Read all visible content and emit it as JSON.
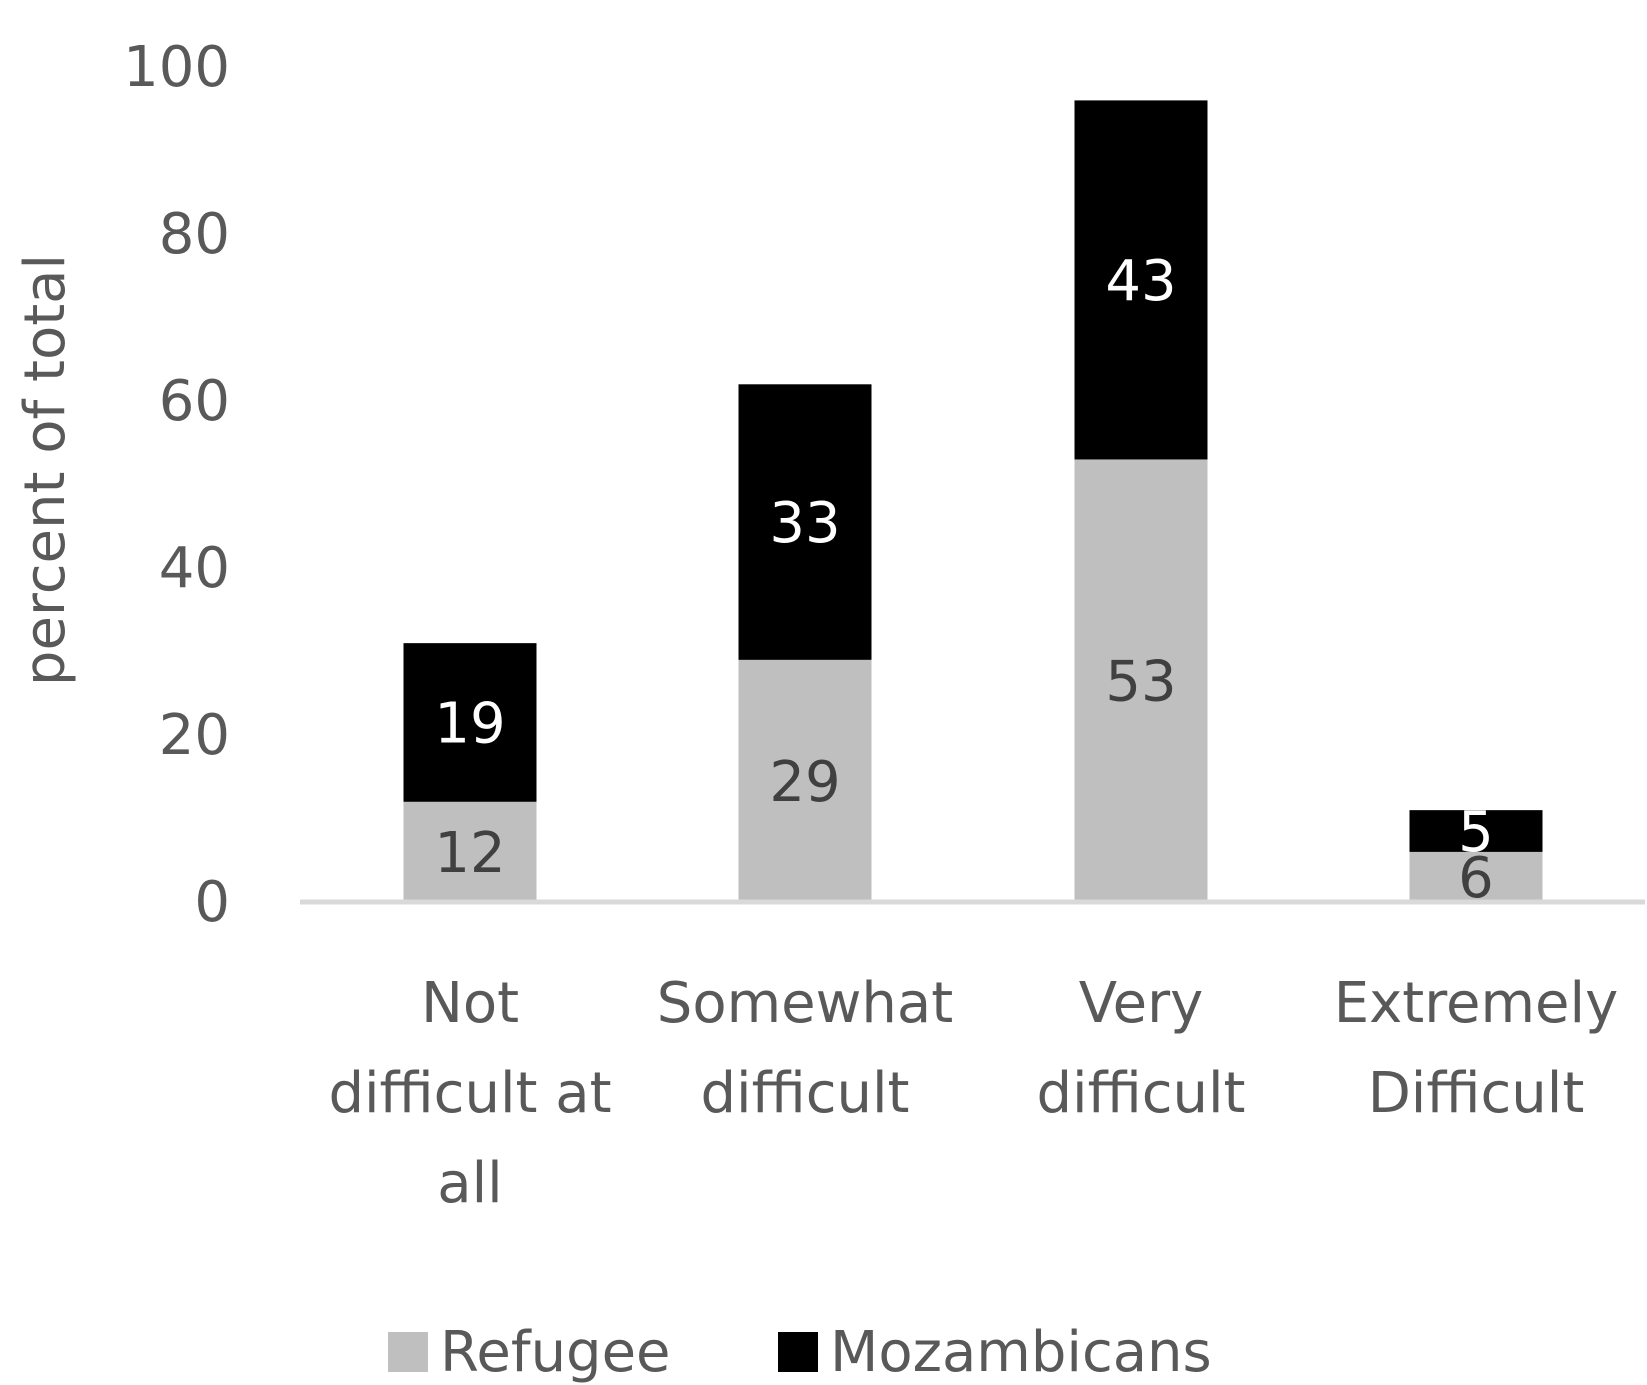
{
  "chart_data": {
    "type": "bar",
    "stacked": true,
    "title": "",
    "xlabel": "",
    "ylabel": "percent of total",
    "ylim": [
      0,
      100
    ],
    "yticks": [
      0,
      20,
      40,
      60,
      80,
      100
    ],
    "categories": [
      [
        "Not",
        "difficult at",
        "all"
      ],
      [
        "Somewhat",
        "difficult"
      ],
      [
        "Very",
        "difficult"
      ],
      [
        "Extremely",
        "Difficult"
      ]
    ],
    "series": [
      {
        "name": "Refugee",
        "color": "#bfbfbf",
        "label_color": "#404040",
        "values": [
          12,
          29,
          53,
          6
        ]
      },
      {
        "name": "Mozambicans",
        "color": "#000000",
        "label_color": "#ffffff",
        "values": [
          19,
          33,
          43,
          5
        ]
      }
    ],
    "grid": false,
    "legend_position": "bottom",
    "axis_color": "#d9d9d9",
    "text_color": "#595959"
  }
}
